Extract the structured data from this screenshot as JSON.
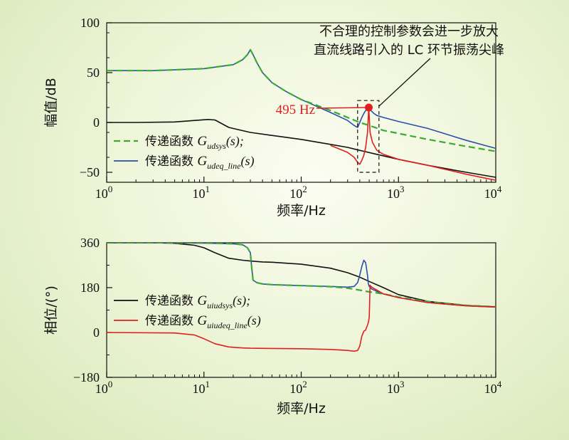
{
  "chart_data": [
    {
      "type": "line",
      "xscale": "log",
      "xlim": [
        1,
        10000
      ],
      "ylim": [
        -60,
        100
      ],
      "xticks": [
        1,
        10,
        100,
        1000,
        10000
      ],
      "xtick_base": "10",
      "xtick_exponents": [
        "0",
        "1",
        "2",
        "3",
        "4"
      ],
      "yticks": [
        100,
        50,
        0,
        -50
      ],
      "ytick_labels": [
        "100",
        "50",
        "0",
        "−50"
      ],
      "xlabel": "频率/Hz",
      "ylabel": "幅值/dB",
      "grid": false,
      "legend_position": "bottom-left",
      "legend": [
        {
          "prefix": "传递函数 ",
          "symbol": "G",
          "sub": "udsys",
          "suffix": "(s);",
          "color": "#3aaa35",
          "dash": true
        },
        {
          "prefix": "传递函数 ",
          "symbol": "G",
          "sub": "udeq_line",
          "suffix": "(s)",
          "color": "#2a4fa8",
          "dash": false
        }
      ],
      "annotation": {
        "lines": [
          "不合理的控制参数会进一步放大",
          "直流线路引入的 LC 环节振荡尖峰"
        ],
        "marker_label": "495 Hz",
        "marker_x": 495,
        "marker_y": 15,
        "marker_color": "#e02020",
        "box_x": [
          380,
          630
        ],
        "box_y": [
          -50,
          22
        ]
      },
      "series": [
        {
          "color": "#111111",
          "x": [
            1,
            2,
            5,
            8,
            11,
            13,
            18,
            30,
            50,
            100,
            200,
            300,
            400,
            600,
            1000,
            2000,
            5000,
            10000
          ],
          "y": [
            0,
            0,
            0.5,
            2,
            3,
            2.5,
            -5,
            -10,
            -13,
            -17,
            -22,
            -25,
            -28,
            -32,
            -37,
            -43,
            -50,
            -55
          ]
        },
        {
          "color": "#e02020",
          "x": [
            200,
            300,
            350,
            380,
            400,
            420,
            440,
            460,
            480,
            495,
            510,
            540,
            600,
            700,
            1000,
            2000,
            5000,
            10000
          ],
          "y": [
            -23,
            -30,
            -35,
            -40,
            -42,
            -38,
            -33,
            -25,
            -10,
            15,
            -10,
            -20,
            -28,
            -32,
            -37,
            -43,
            -52,
            -58
          ]
        },
        {
          "color": "#2a4fa8",
          "x": [
            1,
            3,
            10,
            20,
            25,
            28,
            30,
            32,
            35,
            40,
            50,
            70,
            100,
            200,
            300,
            350,
            380,
            400,
            420,
            440,
            460,
            480,
            495,
            520,
            560,
            600,
            700,
            1000,
            2000,
            5000,
            10000
          ],
          "y": [
            52,
            52,
            54,
            58,
            63,
            68,
            73,
            68,
            60,
            50,
            40,
            31,
            23,
            10,
            2,
            -3,
            -5,
            0,
            5,
            9,
            12,
            14,
            15,
            12,
            9,
            7,
            5,
            1,
            -6,
            -18,
            -26
          ]
        },
        {
          "color": "#3aaa35",
          "dash": true,
          "x": [
            1,
            3,
            10,
            20,
            25,
            28,
            30,
            32,
            35,
            40,
            50,
            70,
            100,
            200,
            300,
            400,
            500,
            700,
            1000,
            2000,
            5000,
            10000
          ],
          "y": [
            52,
            52,
            54,
            58,
            63,
            68,
            73,
            68,
            60,
            50,
            40,
            31,
            23,
            12,
            5,
            0,
            -3,
            -8,
            -11,
            -17,
            -24,
            -29
          ]
        }
      ]
    },
    {
      "type": "line",
      "xscale": "log",
      "xlim": [
        1,
        10000
      ],
      "ylim": [
        -180,
        360
      ],
      "xticks": [
        1,
        10,
        100,
        1000,
        10000
      ],
      "xtick_base": "10",
      "xtick_exponents": [
        "0",
        "1",
        "2",
        "3",
        "4"
      ],
      "yticks": [
        360,
        180,
        0,
        -180
      ],
      "ytick_labels": [
        "360",
        "180",
        "0",
        "−180"
      ],
      "xlabel": "频率/Hz",
      "ylabel": "相位/(°)",
      "grid": false,
      "legend_position": "bottom-left",
      "legend": [
        {
          "prefix": "传递函数 ",
          "symbol": "G",
          "sub": "uiudsys",
          "suffix": "(s);",
          "color": "#111111",
          "dash": false
        },
        {
          "prefix": "传递函数 ",
          "symbol": "G",
          "sub": "uiudeq_line",
          "suffix": "(s)",
          "color": "#e02020",
          "dash": false
        }
      ],
      "series": [
        {
          "color": "#111111",
          "x": [
            1,
            3,
            5,
            8,
            10,
            13,
            18,
            25,
            30,
            40,
            50,
            100,
            200,
            300,
            400,
            500,
            700,
            1000,
            2000,
            5000,
            10000
          ],
          "y": [
            360,
            360,
            358,
            350,
            340,
            320,
            298,
            290,
            287,
            283,
            282,
            274,
            258,
            240,
            222,
            205,
            180,
            152,
            125,
            108,
            103
          ]
        },
        {
          "color": "#2a4fa8",
          "x": [
            1,
            3,
            10,
            20,
            25,
            28,
            30,
            31,
            32,
            35,
            40,
            50,
            100,
            200,
            300,
            350,
            380,
            400,
            420,
            440,
            460,
            480,
            490,
            500,
            510,
            530,
            600,
            700,
            1000,
            2000,
            5000,
            10000
          ],
          "y": [
            360,
            360,
            359,
            356,
            352,
            340,
            320,
            260,
            210,
            200,
            195,
            192,
            188,
            185,
            182,
            185,
            200,
            230,
            265,
            290,
            280,
            230,
            195,
            185,
            182,
            175,
            165,
            155,
            140,
            120,
            107,
            102
          ]
        },
        {
          "color": "#3aaa35",
          "dash": true,
          "x": [
            1,
            3,
            10,
            20,
            25,
            28,
            30,
            31,
            32,
            35,
            40,
            50,
            100,
            200,
            300,
            400,
            500,
            700,
            1000,
            2000,
            5000,
            10000
          ],
          "y": [
            360,
            360,
            359,
            356,
            352,
            340,
            320,
            260,
            210,
            200,
            195,
            192,
            188,
            184,
            178,
            170,
            163,
            155,
            142,
            124,
            109,
            103
          ]
        },
        {
          "color": "#e02020",
          "x": [
            1,
            5,
            8,
            10,
            13,
            18,
            25,
            30,
            50,
            100,
            200,
            300,
            350,
            380,
            400,
            420,
            440,
            460,
            470,
            480,
            490,
            500,
            505,
            510,
            520,
            540,
            600,
            700,
            1000,
            2000,
            5000,
            10000
          ],
          "y": [
            0,
            -2,
            -10,
            -25,
            -45,
            -58,
            -62,
            -63,
            -64,
            -65,
            -68,
            -72,
            -75,
            -72,
            -55,
            -15,
            5,
            10,
            20,
            30,
            40,
            60,
            120,
            190,
            185,
            180,
            170,
            155,
            140,
            120,
            107,
            102
          ]
        }
      ]
    }
  ]
}
